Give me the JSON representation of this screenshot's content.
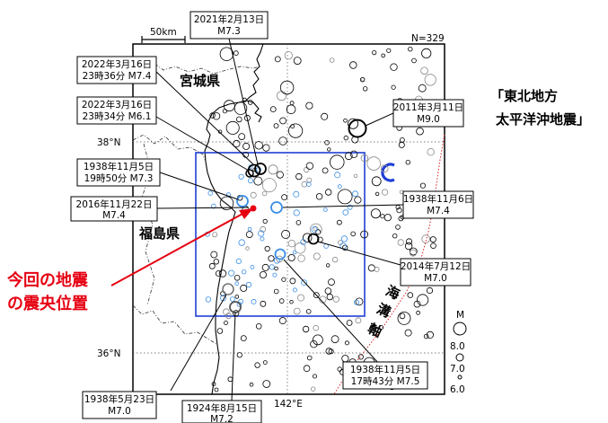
{
  "map": {
    "count_label": "N=329",
    "scale_label": "50km",
    "lat_38": "38°N",
    "lat_36": "36°N",
    "lon_142": "142°E",
    "region_letter": "C",
    "prefectures": {
      "miyagi": "宮城県",
      "fukushima": "福島県"
    },
    "trench": [
      "海",
      "溝",
      "軸"
    ],
    "tohoku_quake": [
      "「東北地方",
      "太平洋沖地震」"
    ],
    "current_quake": [
      "今回の地震",
      "の震央位置"
    ],
    "magnitude_legend": {
      "title": "M",
      "values": [
        "8.0",
        "7.0",
        "6.0"
      ]
    },
    "events": [
      {
        "id": "e20210213",
        "lines": [
          "2021年2月13日",
          "M7.3"
        ]
      },
      {
        "id": "e20220316a",
        "lines": [
          "2022年3月16日",
          "23時36分 M7.4"
        ]
      },
      {
        "id": "e20220316b",
        "lines": [
          "2022年3月16日",
          "23時34分 M6.1"
        ]
      },
      {
        "id": "e20110311",
        "lines": [
          "2011年3月11日",
          "M9.0"
        ]
      },
      {
        "id": "e19381105a",
        "lines": [
          "1938年11月5日",
          "19時50分 M7.3"
        ]
      },
      {
        "id": "e20161122",
        "lines": [
          "2016年11月22日",
          "M7.4"
        ]
      },
      {
        "id": "e19381106",
        "lines": [
          "1938年11月6日",
          "M7.4"
        ]
      },
      {
        "id": "e20140712",
        "lines": [
          "2014年7月12日",
          "M7.0"
        ]
      },
      {
        "id": "e19381105b",
        "lines": [
          "1938年11月5日",
          "17時43分 M7.5"
        ]
      },
      {
        "id": "e19380523",
        "lines": [
          "1938年5月23日",
          "M7.0"
        ]
      },
      {
        "id": "e19240815",
        "lines": [
          "1924年8月15日",
          "M7.2"
        ]
      }
    ]
  },
  "colors": {
    "frame": "#000000",
    "region_box": "#1f3fd6",
    "trench_line": "#e02020",
    "recent_quake": "#3a8ee6",
    "highlight_arrow": "#e60012"
  }
}
